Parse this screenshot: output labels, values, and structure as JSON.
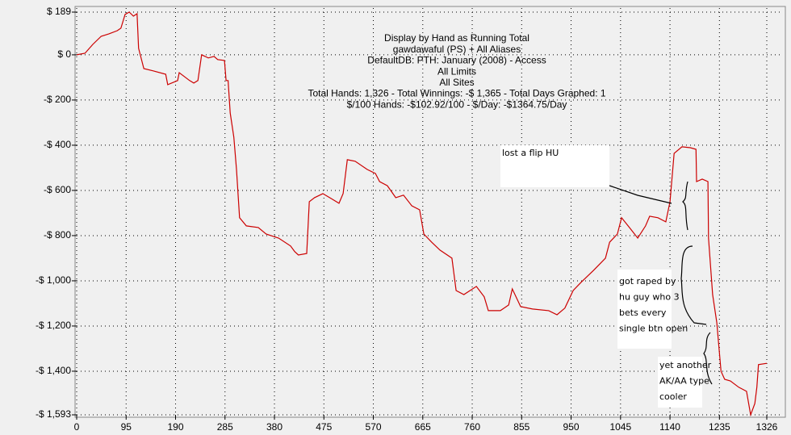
{
  "chart_data": {
    "type": "line",
    "title_lines": [
      "Display by Hand as Running Total",
      "gawdawaful (PS) + All Aliases",
      "DefaultDB: PTH: January (2008) - Access",
      "All Limits",
      "All Sites",
      "Total Hands: 1,326 - Total Winnings: -$ 1,365 - Total Days Graphed: 1",
      "$/100 Hands: -$102.92/100 - $/Day: -$1364.75/Day"
    ],
    "annotations": [
      {
        "lines": [
          "lost a flip HU"
        ]
      },
      {
        "lines": [
          "got raped by",
          "hu guy who 3",
          "bets every",
          "single btn open"
        ]
      },
      {
        "lines": [
          "yet another",
          "AK/AA type",
          "cooler"
        ]
      }
    ],
    "xlim": [
      0,
      1326
    ],
    "ylim": [
      -1593,
      189
    ],
    "xticks": [
      0,
      95,
      190,
      285,
      380,
      475,
      570,
      665,
      760,
      855,
      950,
      1045,
      1140,
      1235,
      1326
    ],
    "yticks": [
      {
        "value": 189,
        "label": "$ 189"
      },
      {
        "value": 0,
        "label": "$ 0"
      },
      {
        "value": -200,
        "label": "-$ 200"
      },
      {
        "value": -400,
        "label": "-$ 400"
      },
      {
        "value": -600,
        "label": "-$ 600"
      },
      {
        "value": -800,
        "label": "-$ 800"
      },
      {
        "value": -1000,
        "label": "-$ 1,000"
      },
      {
        "value": -1200,
        "label": "-$ 1,200"
      },
      {
        "value": -1400,
        "label": "-$ 1,400"
      },
      {
        "value": -1593,
        "label": "-$ 1,593"
      }
    ],
    "grid": true,
    "series": [
      {
        "color": "#cc0000",
        "x": [
          0,
          16,
          31,
          47,
          62,
          78,
          85,
          93,
          101,
          109,
          116,
          119,
          129,
          147,
          171,
          175,
          194,
          197,
          217,
          225,
          233,
          240,
          253,
          264,
          271,
          284,
          287,
          291,
          295,
          302,
          307,
          313,
          326,
          349,
          364,
          388,
          411,
          419,
          426,
          442,
          447,
          457,
          473,
          489,
          504,
          512,
          520,
          535,
          558,
          574,
          582,
          597,
          613,
          628,
          644,
          659,
          667,
          682,
          698,
          721,
          729,
          744,
          768,
          783,
          791,
          814,
          830,
          837,
          853,
          876,
          907,
          923,
          938,
          954,
          969,
          993,
          1016,
          1024,
          1039,
          1047,
          1062,
          1078,
          1093,
          1101,
          1117,
          1132,
          1140,
          1148,
          1163,
          1179,
          1190,
          1191,
          1202,
          1213,
          1214,
          1222,
          1230,
          1238,
          1245,
          1256,
          1272,
          1287,
          1295,
          1303,
          1307,
          1310,
          1326
        ],
        "values": [
          0,
          7,
          46,
          82,
          93,
          107,
          118,
          179,
          189,
          171,
          182,
          29,
          -61,
          -71,
          -86,
          -132,
          -114,
          -79,
          -114,
          -125,
          -114,
          0,
          -14,
          -7,
          -21,
          -25,
          -114,
          -114,
          -257,
          -364,
          -507,
          -721,
          -757,
          -764,
          -793,
          -811,
          -846,
          -871,
          -886,
          -879,
          -650,
          -632,
          -614,
          -636,
          -657,
          -614,
          -464,
          -471,
          -507,
          -525,
          -561,
          -579,
          -632,
          -621,
          -668,
          -686,
          -793,
          -829,
          -864,
          -900,
          -1043,
          -1061,
          -1025,
          -1071,
          -1132,
          -1132,
          -1107,
          -1036,
          -1114,
          -1125,
          -1132,
          -1150,
          -1121,
          -1043,
          -1007,
          -954,
          -900,
          -829,
          -793,
          -721,
          -764,
          -811,
          -757,
          -714,
          -721,
          -739,
          -650,
          -436,
          -407,
          -411,
          -418,
          -561,
          -550,
          -561,
          -811,
          -1061,
          -1186,
          -1400,
          -1436,
          -1443,
          -1471,
          -1489,
          -1593,
          -1543,
          -1471,
          -1371,
          -1365
        ]
      }
    ]
  }
}
